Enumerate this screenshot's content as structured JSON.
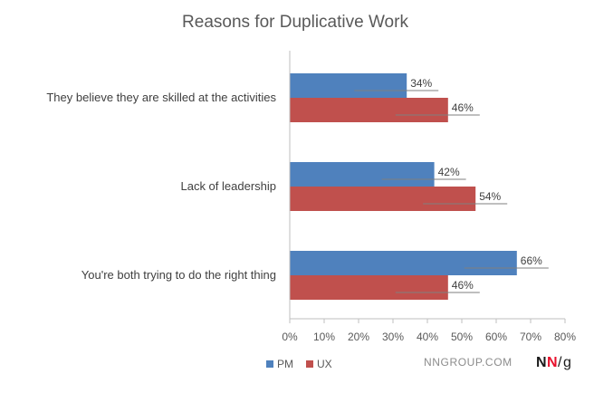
{
  "chart_data": {
    "type": "bar",
    "orientation": "horizontal",
    "title": "Reasons for Duplicative Work",
    "categories": [
      "They believe they are skilled at the activities",
      "Lack of leadership",
      "You're both trying to do the right thing"
    ],
    "series": [
      {
        "name": "PM",
        "values": [
          34,
          42,
          66
        ],
        "color": "#4f81bd"
      },
      {
        "name": "UX",
        "values": [
          46,
          54,
          46
        ],
        "color": "#c0504d"
      }
    ],
    "value_suffix": "%",
    "xlim": [
      0,
      80
    ],
    "xticks": [
      0,
      10,
      20,
      30,
      40,
      50,
      60,
      70,
      80
    ],
    "xlabel": "",
    "ylabel": "",
    "grid": false,
    "legend_position": "bottom-left"
  },
  "branding": {
    "site": "NNGROUP.COM",
    "logo_n1": "N",
    "logo_n2": "N",
    "logo_slash": "/",
    "logo_g": "g",
    "logo_red": "#e8112d",
    "logo_dark": "#1a1a1a"
  }
}
